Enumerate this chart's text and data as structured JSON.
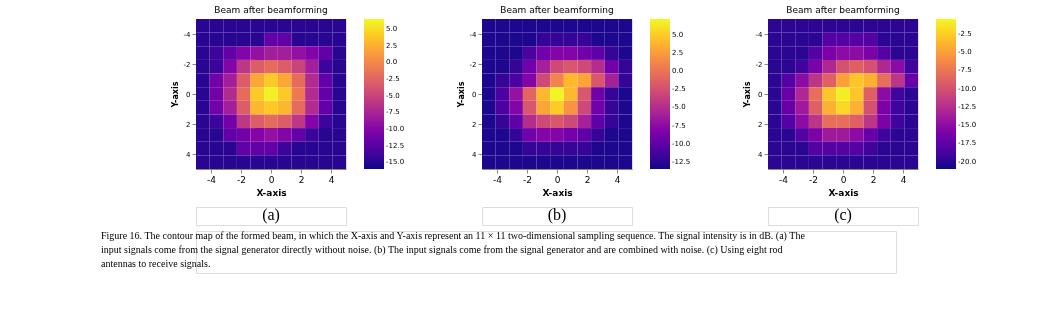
{
  "chart_data": [
    {
      "type": "heatmap",
      "title": "Beam after beamforming",
      "xlabel": "X-axis",
      "ylabel": "Y-axis",
      "xlim": [
        -5,
        5
      ],
      "xticks": [
        -4,
        -2,
        0,
        2,
        4
      ],
      "ylim": [
        5,
        -5
      ],
      "yticks": [
        -4,
        -2,
        0,
        2,
        4
      ],
      "clim": [
        -16,
        6.5
      ],
      "cticks": [
        {
          "value": -15,
          "label": "-15.0"
        },
        -12.5,
        {
          "value": -10,
          "label": "-10.0"
        },
        -7.5,
        {
          "value": -5,
          "label": "-5.0"
        },
        -2.5,
        {
          "value": 0,
          "label": "0.0"
        },
        2.5,
        {
          "value": 5,
          "label": "5.0"
        }
      ],
      "cells": [
        [
          -15,
          -15,
          -15,
          -15,
          -15,
          -15,
          -15,
          -15,
          -15,
          -15,
          -15
        ],
        [
          -15,
          -15,
          -15,
          -15,
          -15,
          -12,
          -12,
          -15,
          -15,
          -15,
          -15
        ],
        [
          -15,
          -14,
          -12,
          -10,
          -9,
          -8,
          -8,
          -9,
          -10,
          -12,
          -15
        ],
        [
          -15,
          -14,
          -10,
          -6,
          -3,
          -2,
          -3,
          -5,
          -8,
          -14,
          -15
        ],
        [
          -15,
          -11,
          -8,
          -3,
          2,
          4,
          2,
          -2,
          -7,
          -12,
          -15
        ],
        [
          -15,
          -11,
          -7,
          -2,
          4,
          6,
          4,
          -1,
          -7,
          -12,
          -15
        ],
        [
          -15,
          -11,
          -8,
          -3,
          3,
          4,
          3,
          -2,
          -7,
          -12,
          -15
        ],
        [
          -15,
          -14,
          -11,
          -6,
          -3,
          -2,
          -3,
          -6,
          -10,
          -14,
          -15
        ],
        [
          -15,
          -15,
          -12,
          -11,
          -10,
          -9,
          -10,
          -12,
          -14,
          -15,
          -15
        ],
        [
          -15,
          -15,
          -15,
          -12,
          -12,
          -12,
          -14,
          -15,
          -15,
          -15,
          -15
        ],
        [
          -15,
          -15,
          -15,
          -15,
          -15,
          -15,
          -15,
          -15,
          -15,
          -15,
          -15
        ]
      ],
      "annotations": [
        "(a)",
        "Figure 16. The contour map of the formed beam, in which the X-axis and Y-axis represent an 11 × 11 two-dimensional sampling sequence. The signal intensity is in dB. (a) The input signals come from the signal generator directly without noise. (b) The input signals come from the signal generator and are combined with noise. (c) Using eight rod antennas to receive signals."
      ]
    },
    {
      "type": "heatmap",
      "title": "Beam after beamforming",
      "xlabel": "X-axis",
      "ylabel": "Y-axis",
      "xlim": [
        -5,
        5
      ],
      "xticks": [
        -4,
        -2,
        0,
        2,
        4
      ],
      "ylim": [
        5,
        -5
      ],
      "yticks": [
        -4,
        -2,
        0,
        2,
        4
      ],
      "clim": [
        -13.5,
        7.2
      ],
      "cticks": [
        -12.5,
        {
          "value": -10,
          "label": "-10.0"
        },
        -7.5,
        {
          "value": -5,
          "label": "-5.0"
        },
        -2.5,
        {
          "value": 0,
          "label": "0.0"
        },
        2.5,
        {
          "value": 5,
          "label": "5.0"
        }
      ],
      "cells": [
        [
          -13,
          -13,
          -13,
          -13,
          -13,
          -13,
          -13,
          -13,
          -13,
          -13,
          -13
        ],
        [
          -13,
          -13,
          -13,
          -13,
          -12,
          -12,
          -12,
          -12,
          -13,
          -13,
          -13
        ],
        [
          -13,
          -13,
          -13,
          -11,
          -9,
          -8,
          -8,
          -9,
          -10,
          -12,
          -13
        ],
        [
          -13,
          -13,
          -12,
          -9,
          -6,
          -3,
          -2,
          -3,
          -5,
          -9,
          -12
        ],
        [
          -13,
          -12,
          -11,
          -8,
          -3,
          1,
          4,
          3,
          -2,
          -6,
          -12
        ],
        [
          -13,
          -11,
          -7,
          -1,
          4,
          7,
          4,
          -2,
          -9,
          -12,
          -13
        ],
        [
          -13,
          -11,
          -8,
          -2,
          3,
          5,
          2,
          -3,
          -9,
          -12,
          -13
        ],
        [
          -13,
          -12,
          -10,
          -5,
          -3,
          -2,
          -3,
          -6,
          -10,
          -12,
          -13
        ],
        [
          -13,
          -13,
          -12,
          -9,
          -8,
          -8,
          -9,
          -10,
          -12,
          -13,
          -13
        ],
        [
          -13,
          -13,
          -13,
          -12,
          -12,
          -12,
          -12,
          -12,
          -13,
          -13,
          -13
        ],
        [
          -13,
          -13,
          -13,
          -13,
          -13,
          -13,
          -13,
          -13,
          -13,
          -13,
          -13
        ]
      ],
      "annotations": [
        "(b)"
      ]
    },
    {
      "type": "heatmap",
      "title": "Beam after beamforming",
      "xlabel": "X-axis",
      "ylabel": "Y-axis",
      "xlim": [
        -5,
        5
      ],
      "xticks": [
        -4,
        -2,
        0,
        2,
        4
      ],
      "ylim": [
        5,
        -5
      ],
      "yticks": [
        -4,
        -2,
        0,
        2,
        4
      ],
      "clim": [
        -21,
        -0.5
      ],
      "cticks": [
        {
          "value": -20,
          "label": "-20.0"
        },
        -17.5,
        {
          "value": -15,
          "label": "-15.0"
        },
        -12.5,
        {
          "value": -10,
          "label": "-10.0"
        },
        -7.5,
        {
          "value": -5,
          "label": "-5.0"
        },
        -2.5
      ],
      "cells": [
        [
          -20,
          -20,
          -20,
          -20,
          -20,
          -20,
          -20,
          -20,
          -20,
          -20,
          -20
        ],
        [
          -20,
          -20,
          -20,
          -20,
          -18,
          -18,
          -18,
          -18,
          -20,
          -20,
          -20
        ],
        [
          -20,
          -20,
          -20,
          -18,
          -16,
          -15,
          -15,
          -16,
          -18,
          -20,
          -20
        ],
        [
          -20,
          -20,
          -19,
          -16,
          -13,
          -10,
          -9,
          -10,
          -13,
          -15,
          -19
        ],
        [
          -20,
          -18,
          -15,
          -12,
          -9,
          -5,
          -3,
          -4,
          -8,
          -12,
          -17
        ],
        [
          -20,
          -17,
          -13,
          -8,
          -3,
          -1,
          -3,
          -9,
          -15,
          -19,
          -20
        ],
        [
          -20,
          -17,
          -14,
          -9,
          -4,
          -2,
          -4,
          -10,
          -16,
          -19,
          -20
        ],
        [
          -20,
          -18,
          -15,
          -12,
          -8,
          -8,
          -9,
          -12,
          -16,
          -19,
          -20
        ],
        [
          -20,
          -20,
          -18,
          -16,
          -14,
          -14,
          -15,
          -17,
          -19,
          -20,
          -20
        ],
        [
          -20,
          -20,
          -20,
          -18,
          -18,
          -18,
          -18,
          -19,
          -20,
          -20,
          -20
        ],
        [
          -20,
          -20,
          -20,
          -20,
          -20,
          -20,
          -20,
          -20,
          -20,
          -20,
          -20
        ]
      ],
      "annotations": [
        "(c)"
      ]
    }
  ]
}
